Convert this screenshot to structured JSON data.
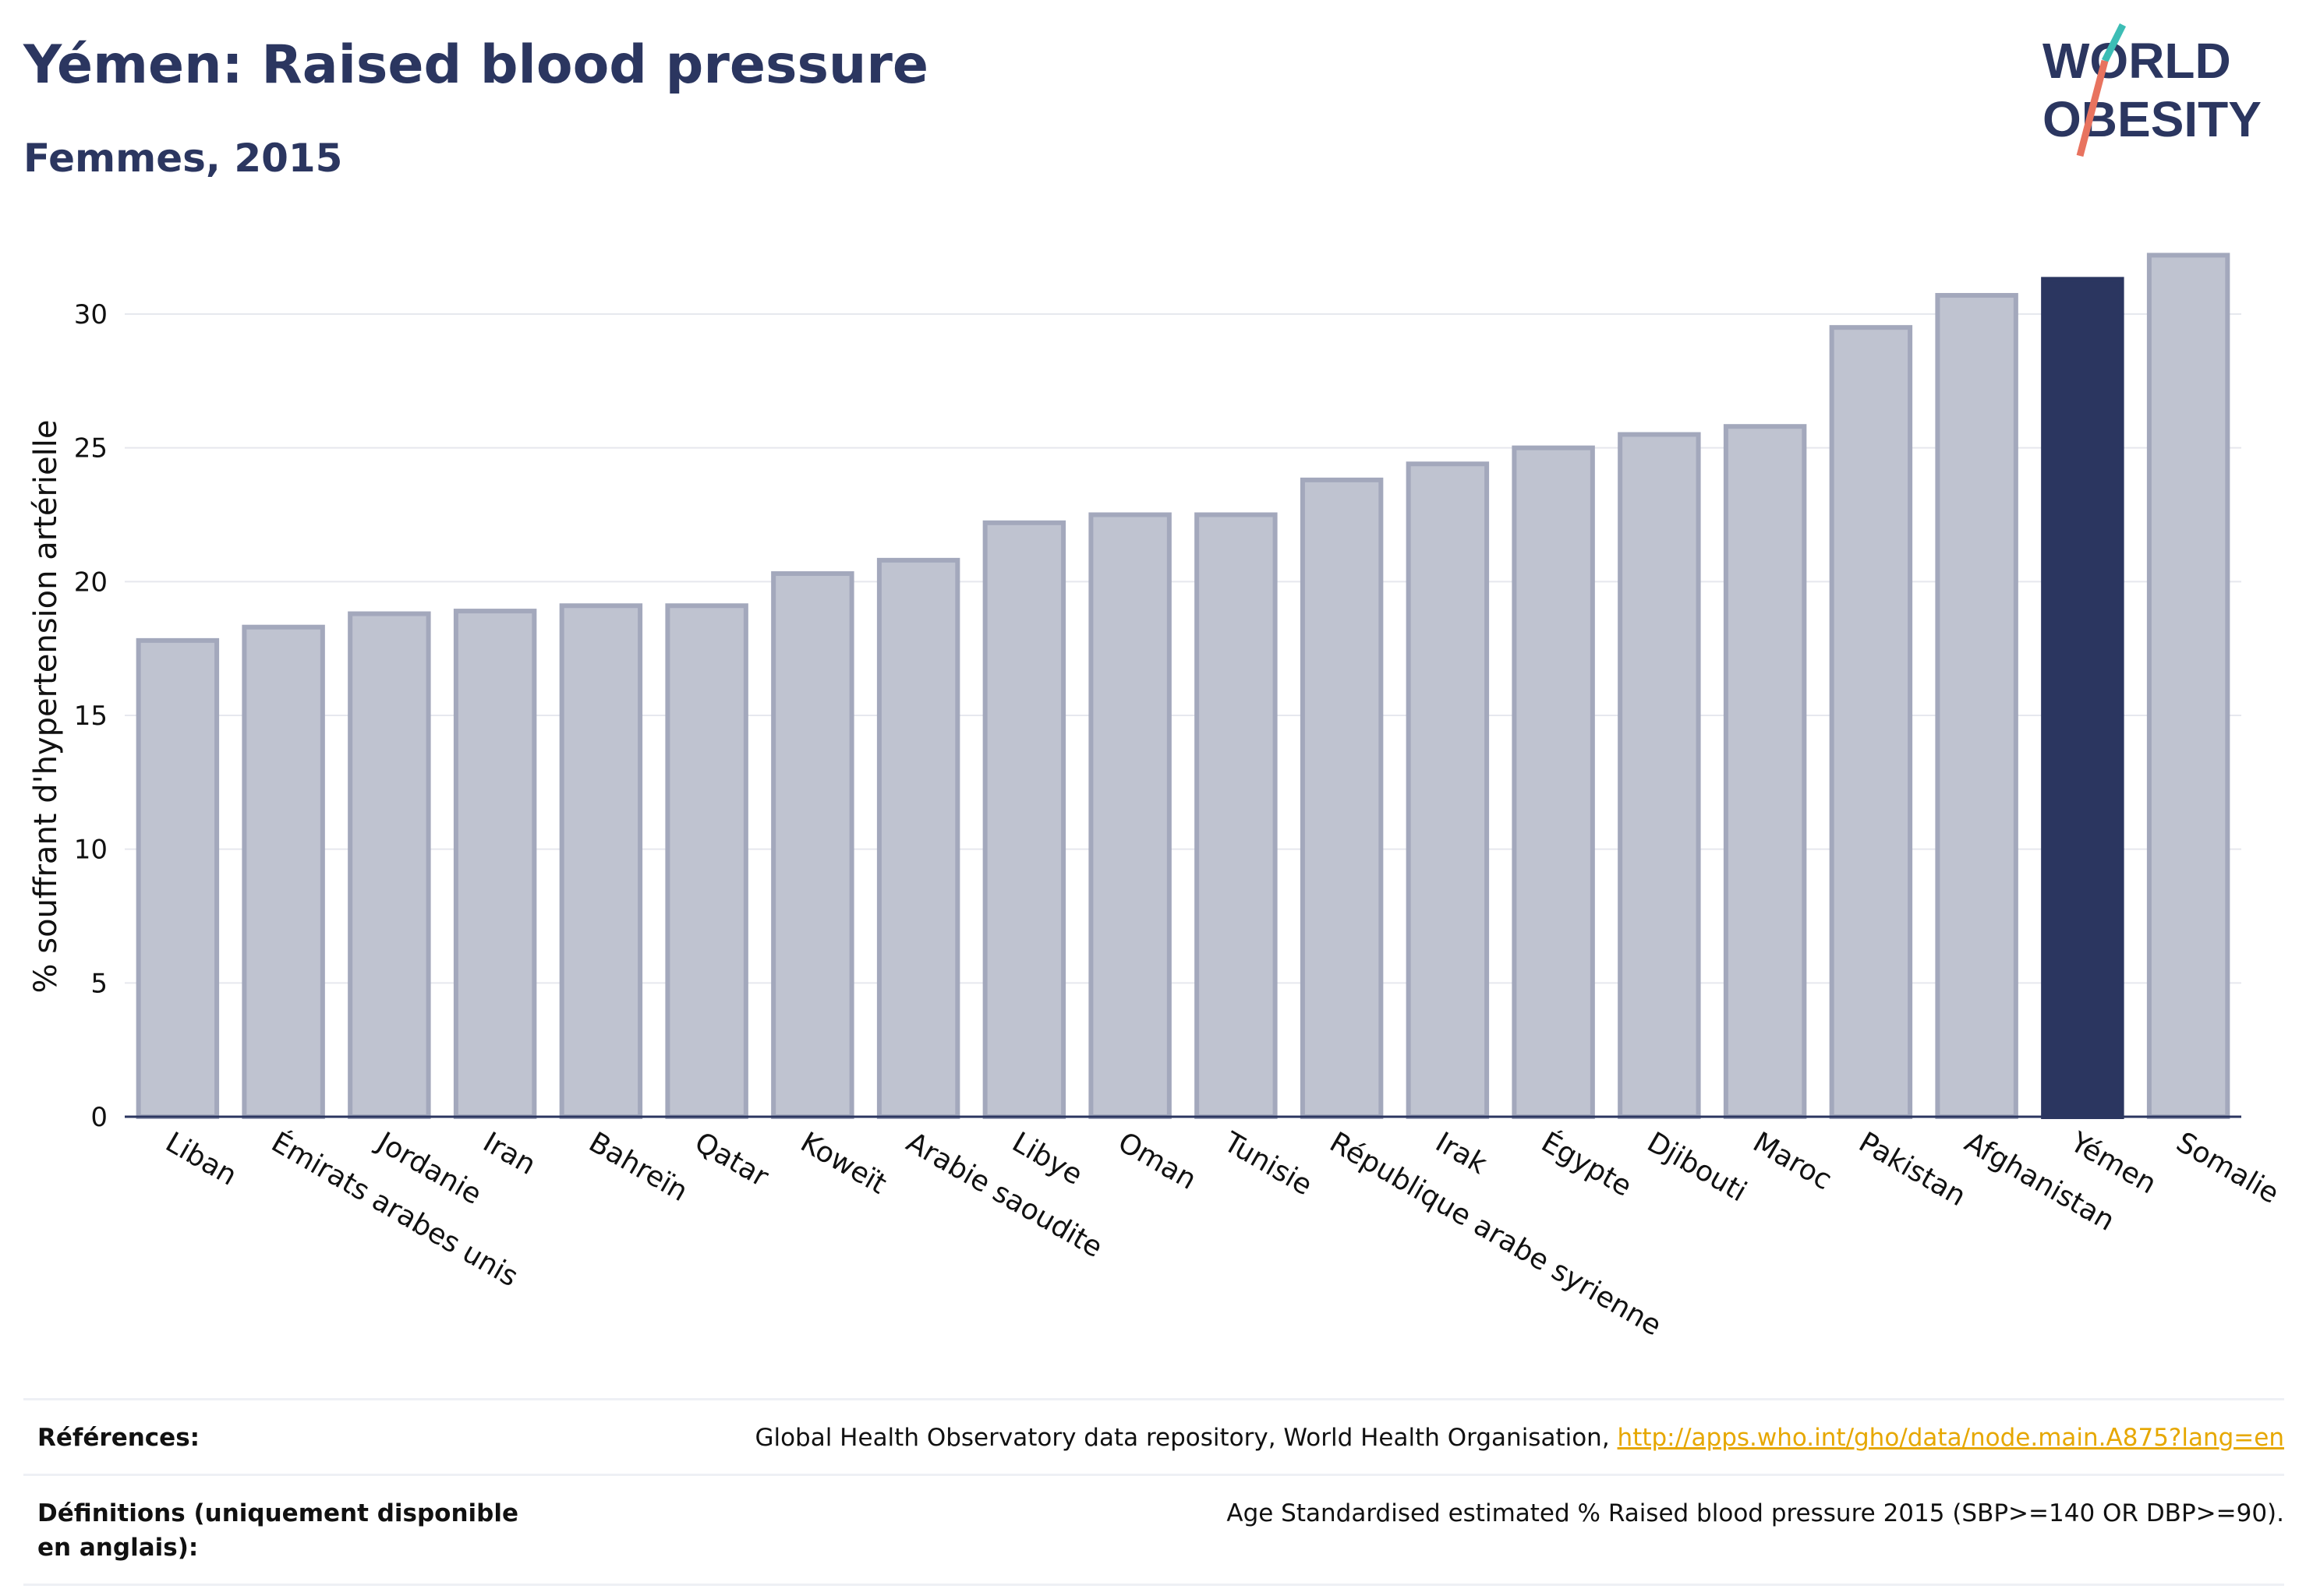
{
  "title": "Yémen: Raised blood pressure",
  "subtitle": "Femmes, 2015",
  "logo": {
    "line1": "WORLD",
    "line2": "OBESITY"
  },
  "colors": {
    "highlight": "#2b3660",
    "bar": "#bfc3d0",
    "bar_stroke": "#a3a8bc",
    "text": "#2b3660",
    "link": "#e6a700"
  },
  "chart_data": {
    "type": "bar",
    "ylabel": "% souffrant d'hypertension artérielle",
    "ylim": [
      0,
      33
    ],
    "yticks": [
      0,
      5,
      10,
      15,
      20,
      25,
      30
    ],
    "grid": true,
    "highlight": "Yémen",
    "categories": [
      "Liban",
      "Émirats arabes unis",
      "Jordanie",
      "Iran",
      "Bahreïn",
      "Qatar",
      "Koweït",
      "Arabie saoudite",
      "Libye",
      "Oman",
      "Tunisie",
      "République arabe syrienne",
      "Irak",
      "Égypte",
      "Djibouti",
      "Maroc",
      "Pakistan",
      "Afghanistan",
      "Yémen",
      "Somalie"
    ],
    "values": [
      17.8,
      18.3,
      18.8,
      18.9,
      19.1,
      19.1,
      20.3,
      20.8,
      22.2,
      22.5,
      22.5,
      23.8,
      24.4,
      25.0,
      25.5,
      25.8,
      29.5,
      30.7,
      31.3,
      32.2
    ]
  },
  "footer": {
    "references_label": "Références:",
    "references_text": "Global Health Observatory data repository, World Health Organisation, ",
    "references_link": "http://apps.who.int/gho/data/node.main.A875?lang=en",
    "definitions_label": "Définitions (uniquement disponible en anglais):",
    "definitions_text": "Age Standardised estimated % Raised blood pressure 2015 (SBP>=140 OR DBP>=90)."
  }
}
